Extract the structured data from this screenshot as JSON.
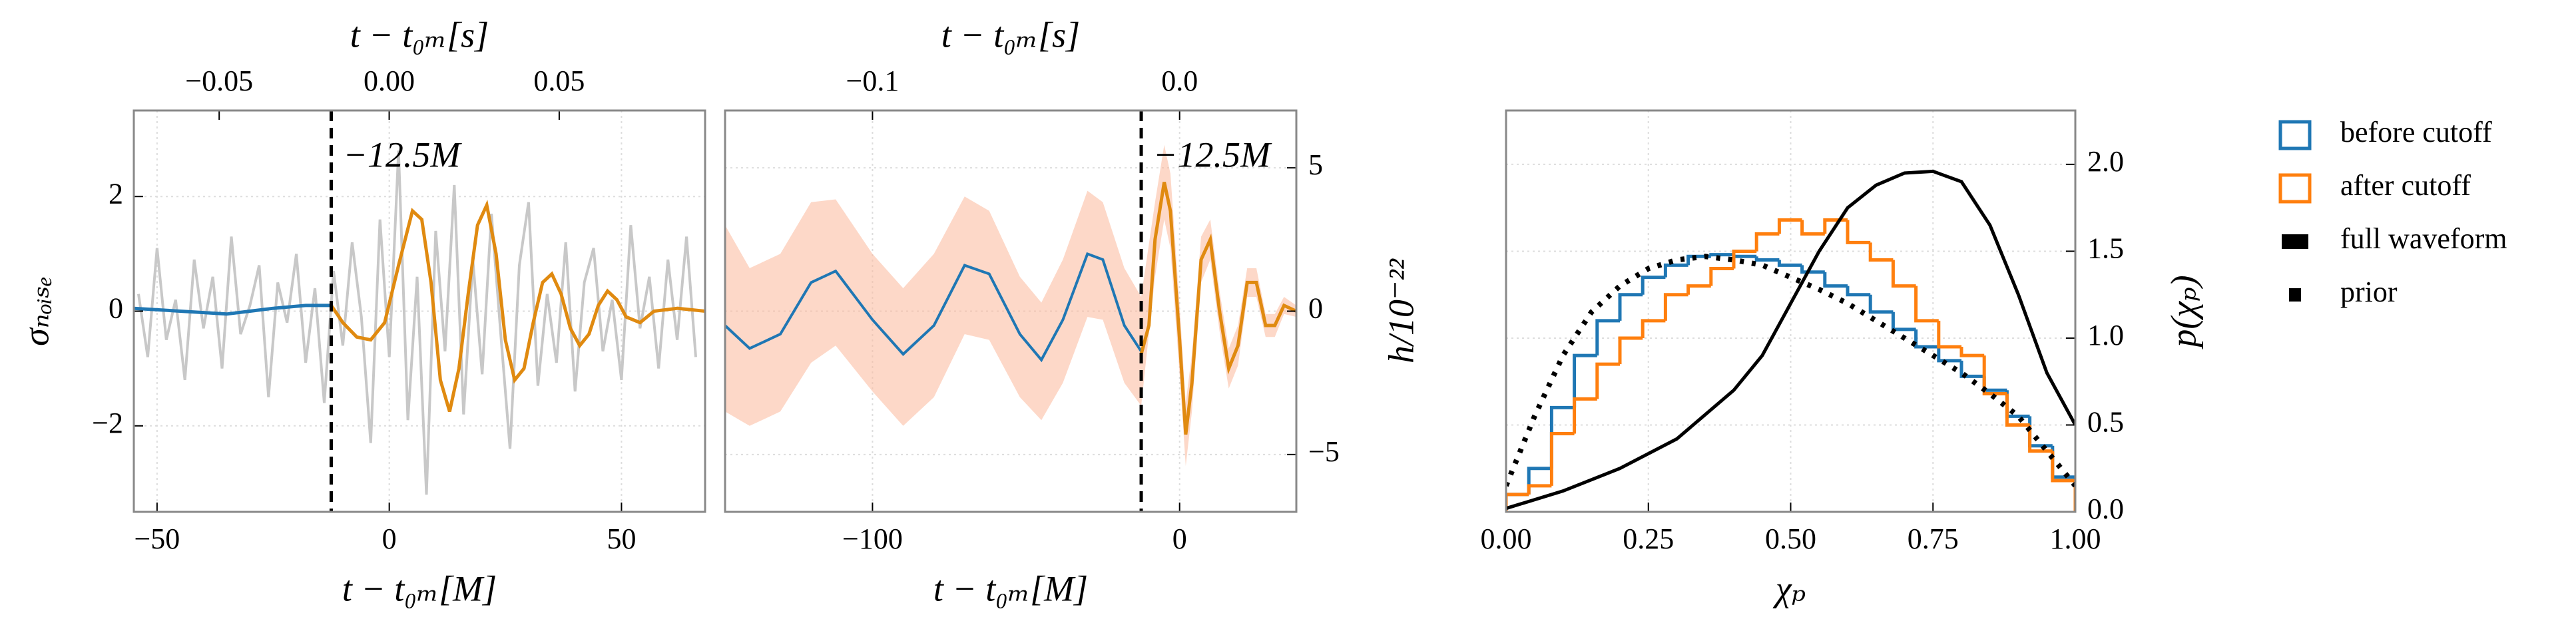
{
  "chart_data": [
    {
      "type": "line",
      "xlabel": "t − t₀ₘ[M]",
      "ylabel": "σₙₒᵢₛₑ",
      "x2label": "t − t₀ₘ[s]",
      "xlim": [
        -55,
        68
      ],
      "xticks": [
        {
          "value": -50,
          "label": "−50"
        },
        0,
        50
      ],
      "x2lim": [
        -0.0751,
        0.0929
      ],
      "x2ticks": [
        {
          "value": -0.05,
          "label": "−0.05"
        },
        {
          "value": 0,
          "label": "0.00"
        },
        {
          "value": 0.05,
          "label": "0.05"
        }
      ],
      "ylim": [
        -3.5,
        3.5
      ],
      "yticks": [
        {
          "value": -2,
          "label": "−2"
        },
        0,
        2
      ],
      "yaxis_side": "left",
      "grid": true,
      "vline": {
        "x": -12.5,
        "label": "−12.5M"
      },
      "series": [
        {
          "color": "#c8c8c8",
          "x": [
            -54,
            -52,
            -50,
            -48,
            -46,
            -44,
            -42,
            -40,
            -38,
            -36,
            -34,
            -32,
            -30,
            -28,
            -26,
            -24,
            -22,
            -20,
            -18,
            -16,
            -14,
            -12,
            -10,
            -8,
            -6,
            -4,
            -2,
            0,
            2,
            4,
            6,
            8,
            10,
            12,
            14,
            16,
            18,
            20,
            22,
            24,
            26,
            28,
            30,
            32,
            34,
            36,
            38,
            40,
            42,
            44,
            46,
            48,
            50,
            52,
            54,
            56,
            58,
            60,
            62,
            64,
            66
          ],
          "values": [
            0.3,
            -0.8,
            1.1,
            -0.5,
            0.2,
            -1.2,
            0.9,
            -0.3,
            0.6,
            -1.0,
            1.3,
            -0.4,
            0.1,
            0.8,
            -1.5,
            0.5,
            -0.2,
            1.0,
            -0.9,
            0.4,
            -1.6,
            0.7,
            -0.6,
            1.2,
            -0.1,
            -2.3,
            1.6,
            -0.8,
            2.8,
            -1.9,
            0.6,
            -3.2,
            1.4,
            -0.7,
            2.2,
            -1.8,
            0.9,
            -1.1,
            1.7,
            -0.4,
            -2.4,
            0.8,
            1.9,
            -1.3,
            0.3,
            -0.9,
            1.2,
            -1.4,
            0.5,
            1.1,
            -0.7,
            0.2,
            -1.2,
            1.5,
            -0.3,
            0.6,
            -1.0,
            0.9,
            -0.5,
            1.3,
            -0.8
          ]
        },
        {
          "color": "#1f77b4",
          "x": [
            -55,
            -45,
            -35,
            -25,
            -18,
            -12.5
          ],
          "values": [
            0.05,
            0.0,
            -0.05,
            0.05,
            0.1,
            0.1
          ]
        },
        {
          "color": "#e08a10",
          "x": [
            -12.5,
            -10,
            -7,
            -4,
            -1,
            2,
            5,
            7,
            9,
            11,
            13,
            15,
            17,
            19,
            21,
            23,
            25,
            27,
            29,
            31,
            33,
            35,
            37,
            39,
            41,
            43,
            45,
            47,
            49,
            51,
            54,
            57,
            62,
            68
          ],
          "values": [
            0.1,
            -0.2,
            -0.45,
            -0.5,
            -0.2,
            0.8,
            1.75,
            1.6,
            0.5,
            -1.2,
            -1.75,
            -1.0,
            0.3,
            1.5,
            1.85,
            1.0,
            -0.5,
            -1.2,
            -1.0,
            -0.2,
            0.5,
            0.65,
            0.3,
            -0.3,
            -0.6,
            -0.4,
            0.1,
            0.35,
            0.2,
            -0.1,
            -0.2,
            0.0,
            0.05,
            0.0
          ]
        }
      ]
    },
    {
      "type": "line",
      "xlabel": "t − t₀ₘ[M]",
      "ylabel": "h/10⁻²²",
      "x2label": "t − t₀ₘ[s]",
      "xlim": [
        -148,
        38
      ],
      "xticks": [
        {
          "value": -100,
          "label": "−100"
        },
        0
      ],
      "x2lim": [
        -0.148,
        0.038
      ],
      "x2ticks": [
        {
          "value": -0.1,
          "label": "−0.1"
        },
        {
          "value": 0,
          "label": "0.0"
        }
      ],
      "ylim": [
        -7,
        7
      ],
      "yticks": [
        {
          "value": -5,
          "label": "−5"
        },
        0,
        5
      ],
      "yaxis_side": "right",
      "grid": true,
      "vline": {
        "x": -12.5,
        "label": "−12.5M"
      },
      "band": {
        "color": "#fbb89a",
        "x": [
          -148,
          -140,
          -130,
          -120,
          -112,
          -100,
          -90,
          -80,
          -70,
          -62,
          -52,
          -45,
          -38,
          -30,
          -25,
          -18,
          -12.5,
          -8,
          -5,
          -3,
          0,
          2,
          4,
          7,
          10,
          13,
          16,
          19,
          22,
          25,
          28,
          31,
          34,
          38
        ],
        "upper": [
          3.0,
          1.5,
          2.0,
          3.8,
          3.9,
          2.0,
          0.8,
          2.0,
          4.0,
          3.5,
          1.2,
          0.3,
          1.8,
          4.2,
          3.8,
          1.5,
          0.5,
          3.8,
          5.8,
          4.8,
          0.2,
          -3.2,
          -1.5,
          2.6,
          3.2,
          0.7,
          -1.3,
          -0.5,
          1.5,
          1.5,
          -0.1,
          -0.1,
          0.5,
          0.2
        ],
        "lower": [
          -3.5,
          -4.0,
          -3.5,
          -1.8,
          -1.2,
          -2.8,
          -4.0,
          -3.0,
          -0.8,
          -1.0,
          -3.0,
          -3.8,
          -2.5,
          -0.2,
          -0.3,
          -2.5,
          -3.3,
          1.2,
          3.2,
          2.2,
          -2.2,
          -5.4,
          -3.5,
          1.0,
          1.8,
          -0.7,
          -2.7,
          -1.9,
          0.5,
          0.5,
          -0.9,
          -0.9,
          -0.1,
          -0.2
        ]
      },
      "series": [
        {
          "color": "#1f77b4",
          "x": [
            -148,
            -140,
            -130,
            -120,
            -112,
            -100,
            -90,
            -80,
            -70,
            -62,
            -52,
            -45,
            -38,
            -30,
            -25,
            -18,
            -12.5
          ],
          "values": [
            -0.5,
            -1.3,
            -0.8,
            1.0,
            1.4,
            -0.3,
            -1.5,
            -0.5,
            1.6,
            1.3,
            -0.8,
            -1.7,
            -0.3,
            2.0,
            1.8,
            -0.5,
            -1.4
          ]
        },
        {
          "color": "#e08a10",
          "x": [
            -12.5,
            -10,
            -8,
            -5,
            -3,
            0,
            2,
            4,
            7,
            10,
            13,
            16,
            19,
            22,
            25,
            28,
            31,
            34,
            38
          ],
          "values": [
            -1.5,
            -0.5,
            2.5,
            4.5,
            3.5,
            -1.0,
            -4.3,
            -2.5,
            1.8,
            2.5,
            0.0,
            -2.0,
            -1.2,
            1.0,
            1.0,
            -0.5,
            -0.5,
            0.2,
            0.0
          ]
        }
      ]
    },
    {
      "type": "histogram",
      "xlabel": "χₚ",
      "ylabel": "p(χₚ)",
      "xlim": [
        0,
        1
      ],
      "xticks": [
        {
          "value": 0,
          "label": "0.00"
        },
        0.25,
        {
          "value": 0.5,
          "label": "0.50"
        },
        0.75,
        {
          "value": 1,
          "label": "1.00"
        }
      ],
      "ylim": [
        0,
        2.31
      ],
      "yticks": [
        {
          "value": 0,
          "label": "0.0"
        },
        0.5,
        {
          "value": 1,
          "label": "1.0"
        },
        1.5,
        {
          "value": 2,
          "label": "2.0"
        }
      ],
      "yaxis_side": "right",
      "grid": true,
      "bins": [
        0,
        0.04,
        0.08,
        0.12,
        0.16,
        0.2,
        0.24,
        0.28,
        0.32,
        0.36,
        0.4,
        0.44,
        0.48,
        0.52,
        0.56,
        0.6,
        0.64,
        0.68,
        0.72,
        0.76,
        0.8,
        0.84,
        0.88,
        0.92,
        0.96,
        1
      ],
      "series": [
        {
          "name": "before cutoff",
          "color": "#1f77b4",
          "values": [
            0.1,
            0.25,
            0.6,
            0.9,
            1.1,
            1.25,
            1.35,
            1.42,
            1.47,
            1.48,
            1.47,
            1.45,
            1.42,
            1.38,
            1.3,
            1.25,
            1.15,
            1.05,
            0.95,
            0.87,
            0.78,
            0.7,
            0.55,
            0.38,
            0.2
          ]
        },
        {
          "name": "after cutoff",
          "color": "#ff7f0e",
          "values": [
            0.1,
            0.15,
            0.45,
            0.65,
            0.85,
            1.0,
            1.1,
            1.25,
            1.3,
            1.4,
            1.5,
            1.6,
            1.68,
            1.6,
            1.68,
            1.55,
            1.45,
            1.3,
            1.1,
            0.95,
            0.9,
            0.68,
            0.5,
            0.35,
            0.18
          ]
        },
        {
          "name": "full waveform",
          "color": "#000000",
          "style": "solid",
          "x": [
            0,
            0.1,
            0.2,
            0.3,
            0.4,
            0.45,
            0.5,
            0.55,
            0.6,
            0.65,
            0.7,
            0.75,
            0.8,
            0.85,
            0.9,
            0.95,
            1.0
          ],
          "values": [
            0.02,
            0.12,
            0.25,
            0.42,
            0.7,
            0.9,
            1.2,
            1.5,
            1.75,
            1.88,
            1.95,
            1.96,
            1.9,
            1.65,
            1.25,
            0.8,
            0.5
          ]
        },
        {
          "name": "prior",
          "color": "#000000",
          "style": "dotted",
          "x": [
            0,
            0.05,
            0.1,
            0.15,
            0.2,
            0.25,
            0.3,
            0.35,
            0.4,
            0.45,
            0.5,
            0.55,
            0.6,
            0.65,
            0.7,
            0.75,
            0.8,
            0.85,
            0.9,
            0.95,
            1.0
          ],
          "values": [
            0.15,
            0.55,
            0.9,
            1.15,
            1.3,
            1.4,
            1.45,
            1.47,
            1.45,
            1.42,
            1.35,
            1.28,
            1.2,
            1.1,
            1.0,
            0.9,
            0.8,
            0.68,
            0.55,
            0.35,
            0.15
          ]
        }
      ]
    }
  ]
}
